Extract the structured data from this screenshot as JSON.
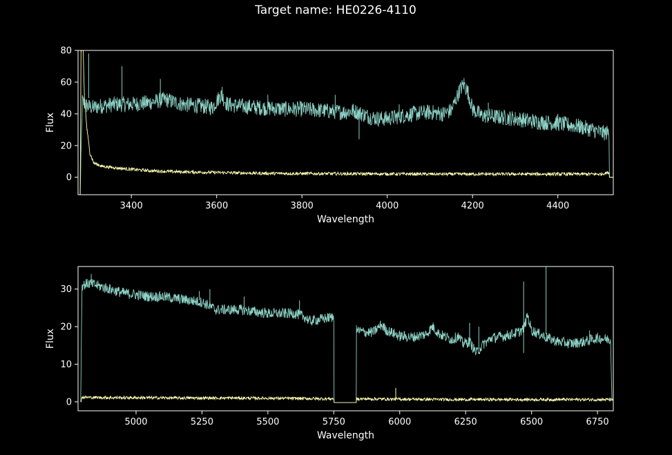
{
  "figure": {
    "title": "Target name: HE0226-4110",
    "background": "#000000",
    "foreground": "#ffffff"
  },
  "chart_data": [
    {
      "type": "line",
      "xlabel": "Wavelength",
      "ylabel": "Flux",
      "xlim": [
        3275,
        4530
      ],
      "ylim": [
        -11,
        80
      ],
      "xticks": [
        3400,
        3600,
        3800,
        4000,
        4200,
        4400
      ],
      "yticks": [
        0,
        20,
        40,
        60,
        80
      ],
      "grid": false,
      "series": [
        {
          "color": "#8dd3c7",
          "band": 5,
          "points": [
            [
              3280,
              -11
            ],
            [
              3285,
              48
            ],
            [
              3295,
              45
            ],
            [
              3310,
              44
            ],
            [
              3330,
              45
            ],
            [
              3360,
              46
            ],
            [
              3400,
              46
            ],
            [
              3440,
              47
            ],
            [
              3480,
              49
            ],
            [
              3520,
              46
            ],
            [
              3560,
              45
            ],
            [
              3590,
              44
            ],
            [
              3610,
              52
            ],
            [
              3625,
              46
            ],
            [
              3650,
              45
            ],
            [
              3700,
              44
            ],
            [
              3760,
              43
            ],
            [
              3800,
              43
            ],
            [
              3850,
              42
            ],
            [
              3900,
              41
            ],
            [
              3920,
              42
            ],
            [
              3940,
              40
            ],
            [
              3960,
              38
            ],
            [
              3980,
              37
            ],
            [
              4000,
              37
            ],
            [
              4020,
              38
            ],
            [
              4060,
              40
            ],
            [
              4100,
              41
            ],
            [
              4130,
              40
            ],
            [
              4150,
              42
            ],
            [
              4170,
              55
            ],
            [
              4180,
              59
            ],
            [
              4190,
              53
            ],
            [
              4200,
              43
            ],
            [
              4220,
              39
            ],
            [
              4260,
              38
            ],
            [
              4300,
              37
            ],
            [
              4350,
              35
            ],
            [
              4400,
              34
            ],
            [
              4450,
              32
            ],
            [
              4480,
              30
            ],
            [
              4505,
              28
            ],
            [
              4520,
              28
            ],
            [
              4521,
              0
            ],
            [
              4530,
              0
            ]
          ]
        },
        {
          "color": "#ffffb3",
          "band": 1,
          "points": [
            [
              3280,
              -11
            ],
            [
              3282,
              80
            ],
            [
              3287,
              80
            ],
            [
              3290,
              50
            ],
            [
              3296,
              30
            ],
            [
              3303,
              15
            ],
            [
              3312,
              9
            ],
            [
              3330,
              7
            ],
            [
              3360,
              6
            ],
            [
              3400,
              5
            ],
            [
              3450,
              4
            ],
            [
              3500,
              3.5
            ],
            [
              3600,
              3
            ],
            [
              3700,
              2.5
            ],
            [
              3800,
              2.3
            ],
            [
              3900,
              2.2
            ],
            [
              4000,
              2.1
            ],
            [
              4100,
              2
            ],
            [
              4200,
              2
            ],
            [
              4300,
              2
            ],
            [
              4400,
              2
            ],
            [
              4500,
              2
            ],
            [
              4520,
              3
            ],
            [
              4521,
              0
            ],
            [
              4530,
              0
            ]
          ]
        }
      ],
      "spikes": [
        {
          "x": 3300,
          "y0": 50,
          "y1": 78
        },
        {
          "x": 3378,
          "y0": 45,
          "y1": 70
        },
        {
          "x": 3468,
          "y0": 47,
          "y1": 62
        },
        {
          "x": 3613,
          "y0": 50,
          "y1": 57
        },
        {
          "x": 3720,
          "y0": 44,
          "y1": 52
        },
        {
          "x": 3878,
          "y0": 42,
          "y1": 52
        },
        {
          "x": 3934,
          "y0": 40,
          "y1": 24
        },
        {
          "x": 4028,
          "y0": 38,
          "y1": 46
        },
        {
          "x": 4237,
          "y0": 39,
          "y1": 47
        },
        {
          "x": 4400,
          "y0": 34,
          "y1": 40
        }
      ]
    },
    {
      "type": "line",
      "xlabel": "Wavelength",
      "ylabel": "Flux",
      "xlim": [
        4780,
        6810
      ],
      "ylim": [
        -2.4,
        36
      ],
      "xticks": [
        5000,
        5250,
        5500,
        5750,
        6000,
        6250,
        6500,
        6750
      ],
      "yticks": [
        0,
        10,
        20,
        30
      ],
      "grid": false,
      "series": [
        {
          "color": "#8dd3c7",
          "band": 1.4,
          "points": [
            [
              4790,
              0
            ],
            [
              4795,
              31
            ],
            [
              4820,
              31.5
            ],
            [
              4850,
              31
            ],
            [
              4900,
              30
            ],
            [
              4950,
              29
            ],
            [
              5000,
              28.5
            ],
            [
              5050,
              28
            ],
            [
              5100,
              28
            ],
            [
              5150,
              27.5
            ],
            [
              5200,
              27
            ],
            [
              5250,
              26.5
            ],
            [
              5280,
              25.5
            ],
            [
              5300,
              24.5
            ],
            [
              5350,
              24.5
            ],
            [
              5400,
              24.5
            ],
            [
              5450,
              24
            ],
            [
              5500,
              23.5
            ],
            [
              5550,
              23.5
            ],
            [
              5600,
              23.5
            ],
            [
              5625,
              23
            ],
            [
              5640,
              22.5
            ],
            [
              5660,
              21.5
            ],
            [
              5700,
              22
            ],
            [
              5745,
              22.5
            ],
            [
              5750,
              22.5
            ],
            [
              5751,
              -0.2
            ],
            [
              5835,
              -0.2
            ],
            [
              5836,
              19
            ],
            [
              5870,
              18.5
            ],
            [
              5900,
              18.5
            ],
            [
              5930,
              20.5
            ],
            [
              5950,
              19
            ],
            [
              6000,
              17.5
            ],
            [
              6050,
              17.2
            ],
            [
              6100,
              18
            ],
            [
              6125,
              20
            ],
            [
              6150,
              18
            ],
            [
              6200,
              16.5
            ],
            [
              6220,
              17.5
            ],
            [
              6240,
              15.5
            ],
            [
              6265,
              16
            ],
            [
              6290,
              13
            ],
            [
              6320,
              15.5
            ],
            [
              6350,
              17
            ],
            [
              6400,
              17.5
            ],
            [
              6450,
              18.5
            ],
            [
              6470,
              19.5
            ],
            [
              6485,
              23
            ],
            [
              6500,
              19
            ],
            [
              6530,
              18
            ],
            [
              6560,
              17
            ],
            [
              6600,
              16
            ],
            [
              6650,
              15.5
            ],
            [
              6700,
              16
            ],
            [
              6750,
              17
            ],
            [
              6800,
              16.5
            ],
            [
              6805,
              0.5
            ],
            [
              6810,
              0.5
            ]
          ]
        },
        {
          "color": "#ffffb3",
          "band": 0.4,
          "points": [
            [
              4790,
              0
            ],
            [
              4795,
              1.2
            ],
            [
              4900,
              1.1
            ],
            [
              5000,
              1.1
            ],
            [
              5200,
              1
            ],
            [
              5400,
              1
            ],
            [
              5600,
              0.9
            ],
            [
              5745,
              0.8
            ],
            [
              5750,
              0.8
            ],
            [
              5751,
              -0.2
            ],
            [
              5835,
              -0.2
            ],
            [
              5836,
              0.8
            ],
            [
              6000,
              0.7
            ],
            [
              6200,
              0.6
            ],
            [
              6400,
              0.6
            ],
            [
              6600,
              0.6
            ],
            [
              6800,
              0.6
            ],
            [
              6805,
              0.5
            ],
            [
              6810,
              0.5
            ]
          ]
        }
      ],
      "spikes": [
        {
          "x": 4830,
          "y0": 31,
          "y1": 34
        },
        {
          "x": 5240,
          "y0": 27,
          "y1": 29.5
        },
        {
          "x": 5280,
          "y0": 25,
          "y1": 30
        },
        {
          "x": 5410,
          "y0": 24.5,
          "y1": 28
        },
        {
          "x": 5620,
          "y0": 23,
          "y1": 27
        },
        {
          "x": 6265,
          "y0": 16,
          "y1": 21
        },
        {
          "x": 6300,
          "y0": 14,
          "y1": 20
        },
        {
          "x": 6470,
          "y0": 20,
          "y1": 32
        },
        {
          "x": 6470,
          "y0": 20,
          "y1": 13
        },
        {
          "x": 6555,
          "y0": 18,
          "y1": 36
        },
        {
          "x": 6720,
          "y0": 16,
          "y1": 19
        },
        {
          "x": 5985,
          "y0": 0.7,
          "y1": 3.7
        }
      ]
    }
  ]
}
